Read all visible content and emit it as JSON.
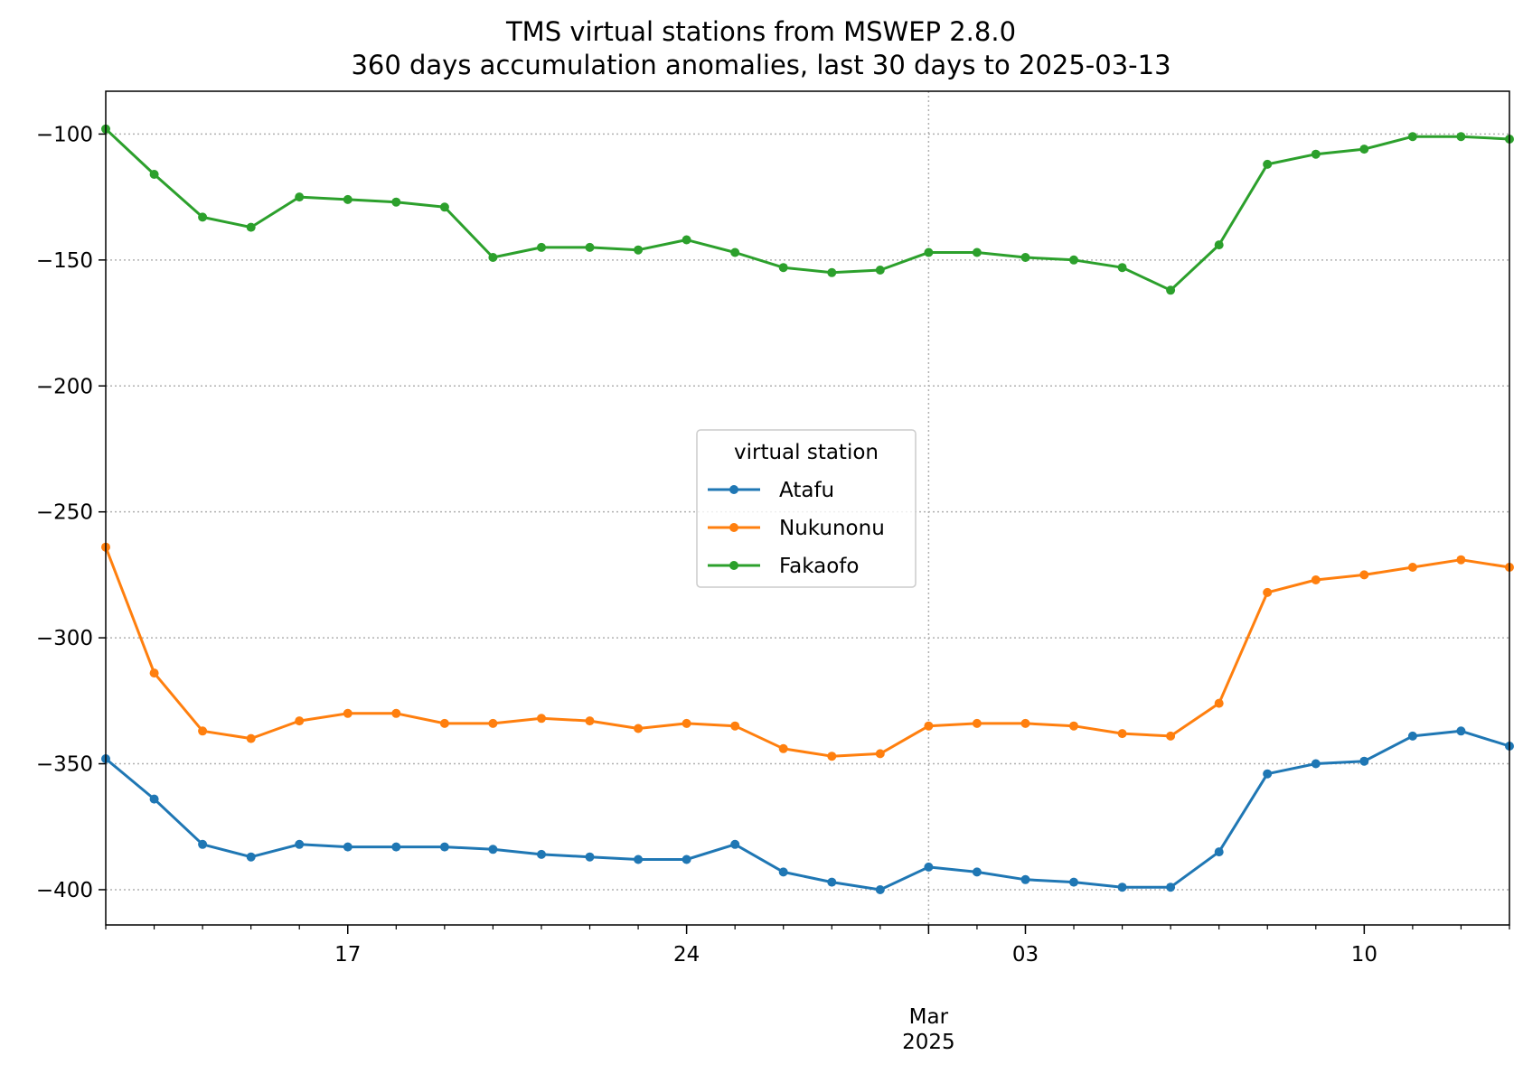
{
  "chart_data": {
    "type": "line",
    "title": "TMS virtual stations from MSWEP 2.8.0",
    "subtitle": "360 days accumulation anomalies, last 30 days to 2025-03-13",
    "xlabel": "",
    "ylabel": "",
    "x": [
      "2025-02-12",
      "2025-02-13",
      "2025-02-14",
      "2025-02-15",
      "2025-02-16",
      "2025-02-17",
      "2025-02-18",
      "2025-02-19",
      "2025-02-20",
      "2025-02-21",
      "2025-02-22",
      "2025-02-23",
      "2025-02-24",
      "2025-02-25",
      "2025-02-26",
      "2025-02-27",
      "2025-02-28",
      "2025-03-01",
      "2025-03-02",
      "2025-03-03",
      "2025-03-04",
      "2025-03-05",
      "2025-03-06",
      "2025-03-07",
      "2025-03-08",
      "2025-03-09",
      "2025-03-10",
      "2025-03-11",
      "2025-03-12",
      "2025-03-13"
    ],
    "xlim": [
      "2025-02-12",
      "2025-03-13"
    ],
    "ylim": [
      -414,
      -83
    ],
    "yticks": [
      -100,
      -150,
      -200,
      -250,
      -300,
      -350,
      -400
    ],
    "ytick_labels": [
      "−100",
      "−150",
      "−200",
      "−250",
      "−300",
      "−350",
      "−400"
    ],
    "xticks_major": [
      {
        "date": "2025-02-17",
        "label": "17"
      },
      {
        "date": "2025-02-24",
        "label": "24"
      },
      {
        "date": "2025-03-03",
        "label": "03"
      },
      {
        "date": "2025-03-10",
        "label": "10"
      }
    ],
    "xticks_month": {
      "date": "2025-03-01",
      "label": "Mar",
      "year": "2025"
    },
    "grid": true,
    "legend": {
      "title": "virtual station",
      "position": "center"
    },
    "series": [
      {
        "name": "Atafu",
        "color": "#1f77b4",
        "values": [
          -348,
          -364,
          -382,
          -387,
          -382,
          -383,
          -383,
          -383,
          -384,
          -386,
          -387,
          -388,
          -388,
          -382,
          -393,
          -397,
          -400,
          -391,
          -393,
          -396,
          -397,
          -399,
          -399,
          -385,
          -354,
          -350,
          -349,
          -339,
          -337,
          -343
        ]
      },
      {
        "name": "Nukunonu",
        "color": "#ff7f0e",
        "values": [
          -264,
          -314,
          -337,
          -340,
          -333,
          -330,
          -330,
          -334,
          -334,
          -332,
          -333,
          -336,
          -334,
          -335,
          -344,
          -347,
          -346,
          -335,
          -334,
          -334,
          -335,
          -338,
          -339,
          -326,
          -282,
          -277,
          -275,
          -272,
          -269,
          -272
        ]
      },
      {
        "name": "Fakaofo",
        "color": "#2ca02c",
        "values": [
          -98,
          -116,
          -133,
          -137,
          -125,
          -126,
          -127,
          -129,
          -149,
          -145,
          -145,
          -146,
          -142,
          -147,
          -153,
          -155,
          -154,
          -147,
          -147,
          -149,
          -150,
          -153,
          -162,
          -144,
          -112,
          -108,
          -106,
          -101,
          -101,
          -102
        ]
      }
    ]
  }
}
